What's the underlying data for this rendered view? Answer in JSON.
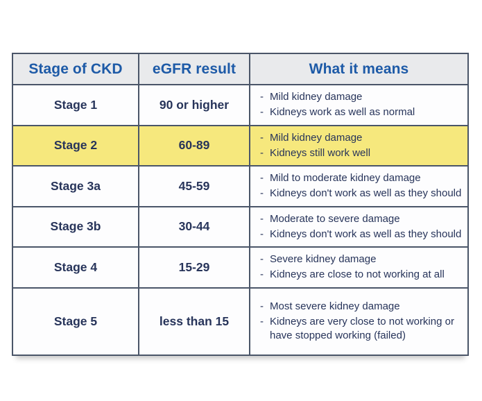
{
  "chart_data": {
    "type": "table",
    "columns": [
      "Stage of CKD",
      "eGFR result",
      "What it means"
    ],
    "rows": [
      {
        "stage": "Stage 1",
        "egfr": "90 or higher",
        "meaning": [
          "Mild kidney damage",
          "Kidneys work as well as normal"
        ],
        "highlighted": false
      },
      {
        "stage": "Stage 2",
        "egfr": "60-89",
        "meaning": [
          "Mild kidney damage",
          "Kidneys still work well"
        ],
        "highlighted": true
      },
      {
        "stage": "Stage 3a",
        "egfr": "45-59",
        "meaning": [
          "Mild to moderate kidney damage",
          "Kidneys don't work as well as they should"
        ],
        "highlighted": false
      },
      {
        "stage": "Stage 3b",
        "egfr": "30-44",
        "meaning": [
          "Moderate to severe damage",
          "Kidneys don't work as well as they should"
        ],
        "highlighted": false
      },
      {
        "stage": "Stage 4",
        "egfr": "15-29",
        "meaning": [
          "Severe kidney damage",
          "Kidneys are close to not working at all"
        ],
        "highlighted": false
      },
      {
        "stage": "Stage 5",
        "egfr": "less than 15",
        "meaning": [
          "Most severe kidney damage",
          "Kidneys are very close to not working or have stopped working (failed)"
        ],
        "highlighted": false
      }
    ],
    "legend_position": "none",
    "grid": true
  },
  "bullet_glyph": "-",
  "colors": {
    "header_text": "#1d5aa7",
    "header_bg": "#e9eaec",
    "highlight_bg": "#f6e87d",
    "body_text": "#27345a",
    "border": "#4a5568",
    "page_bg": "#ffffff"
  }
}
